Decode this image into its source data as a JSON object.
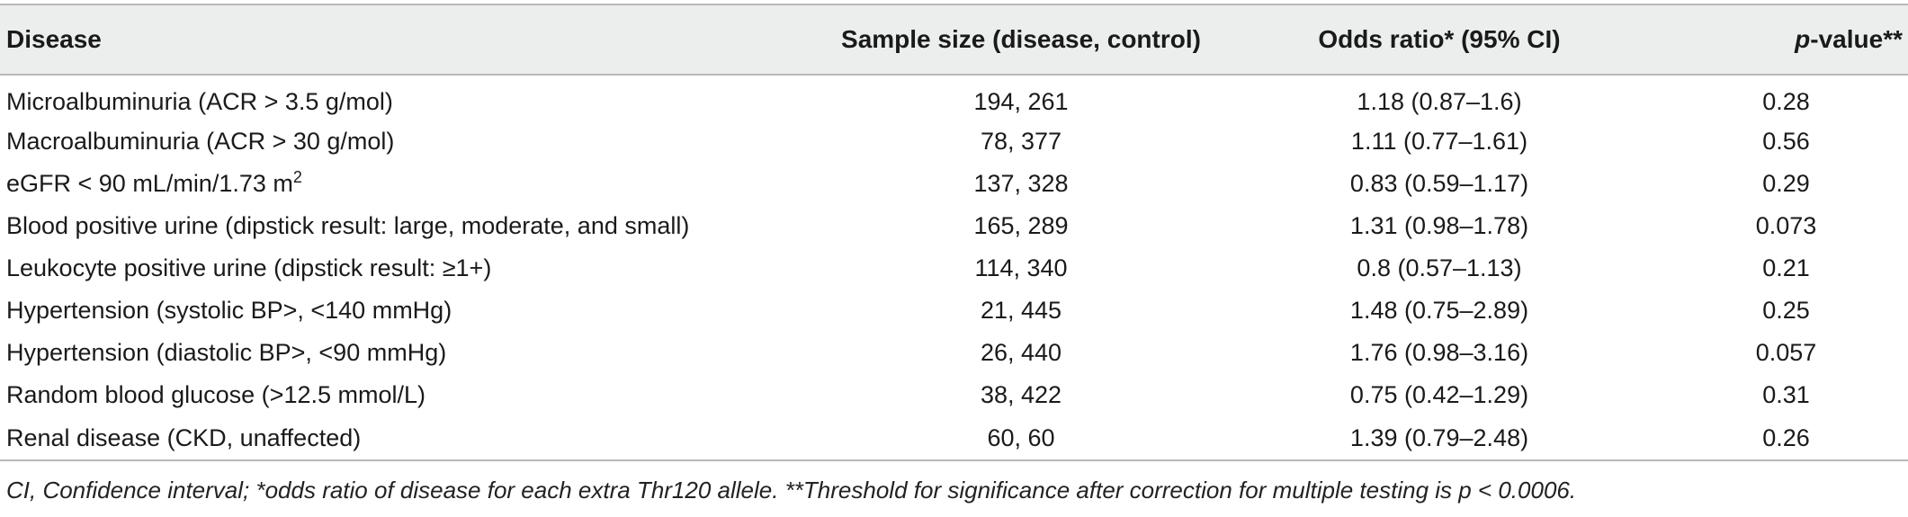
{
  "table": {
    "headers": {
      "disease": "Disease",
      "sample_size": "Sample size (disease, control)",
      "odds_ratio": "Odds ratio* (95% CI)",
      "p_value_italic": "p",
      "p_value_rest": "-value**"
    },
    "rows": [
      {
        "disease": "Microalbuminuria (ACR > 3.5 g/mol)",
        "sample_size": "194, 261",
        "odds_ratio": "1.18 (0.87–1.6)",
        "p_value": "0.28"
      },
      {
        "disease": "Macroalbuminuria (ACR > 30 g/mol)",
        "sample_size": "78, 377",
        "odds_ratio": "1.11 (0.77–1.61)",
        "p_value": "0.56"
      },
      {
        "disease": "eGFR < 90 mL/min/1.73 m",
        "disease_sup": "2",
        "sample_size": "137, 328",
        "odds_ratio": "0.83 (0.59–1.17)",
        "p_value": "0.29"
      },
      {
        "disease": "Blood positive urine (dipstick result: large, moderate, and small)",
        "sample_size": "165, 289",
        "odds_ratio": "1.31 (0.98–1.78)",
        "p_value": "0.073"
      },
      {
        "disease": "Leukocyte positive urine (dipstick result: ≥1+)",
        "sample_size": "114, 340",
        "odds_ratio": "0.8 (0.57–1.13)",
        "p_value": "0.21"
      },
      {
        "disease": "Hypertension (systolic BP>, <140 mmHg)",
        "sample_size": "21, 445",
        "odds_ratio": "1.48 (0.75–2.89)",
        "p_value": "0.25"
      },
      {
        "disease": "Hypertension (diastolic BP>, <90 mmHg)",
        "sample_size": "26, 440",
        "odds_ratio": "1.76 (0.98–3.16)",
        "p_value": "0.057"
      },
      {
        "disease": "Random blood glucose (>12.5 mmol/L)",
        "sample_size": "38, 422",
        "odds_ratio": "0.75 (0.42–1.29)",
        "p_value": "0.31"
      },
      {
        "disease": "Renal disease (CKD, unaffected)",
        "sample_size": "60, 60",
        "odds_ratio": "1.39 (0.79–2.48)",
        "p_value": "0.26"
      }
    ]
  },
  "footnote": "CI, Confidence interval; *odds ratio of disease for each extra Thr120 allele. **Threshold for significance after correction for multiple testing is p < 0.0006.",
  "colors": {
    "header_background": "#eceeee",
    "rule": "#b8b8b8",
    "text": "#1a1a1a"
  }
}
